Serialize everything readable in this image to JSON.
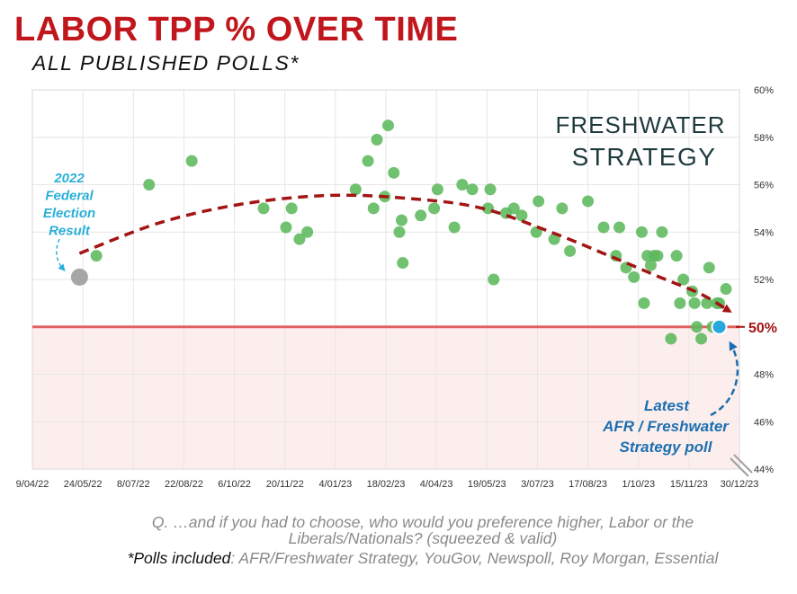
{
  "header": {
    "title": "LABOR TPP % OVER TIME",
    "subtitle": "ALL PUBLISHED POLLS*"
  },
  "brand": {
    "line1": "FRESHWATER",
    "line2": "STRATEGY",
    "color": "#1f3a3d"
  },
  "footer": {
    "question": "Q. …and if you had to choose, who would you preference higher, Labor or the Liberals/Nationals? (squeezed & valid)",
    "polls_lead": "*Polls included",
    "polls_list": ": AFR/Freshwater Strategy, YouGov, Newspoll, Roy Morgan, Essential"
  },
  "colors": {
    "title": "#c0161c",
    "points": "#5cb85c",
    "trend": "#a31515",
    "threshold": "#e06060",
    "below_threshold_fill": "#fdeeee",
    "election_point": "#a6a6a6",
    "latest_point": "#29a8e0",
    "annotation_election": "#2ab0d8",
    "annotation_latest": "#1b6fb0"
  },
  "chart_data": {
    "type": "scatter",
    "x_tick_labels": [
      "9/04/22",
      "24/05/22",
      "8/07/22",
      "22/08/22",
      "6/10/22",
      "20/11/22",
      "4/01/23",
      "18/02/23",
      "4/04/23",
      "19/05/23",
      "3/07/23",
      "17/08/23",
      "1/10/23",
      "15/11/23",
      "30/12/23"
    ],
    "y_tick_labels": [
      "44%",
      "46%",
      "48%",
      "50%",
      "52%",
      "54%",
      "56%",
      "58%",
      "60%"
    ],
    "ylim": [
      44,
      60
    ],
    "threshold": {
      "value": 50,
      "label": "50%"
    },
    "election": {
      "x": "2022-05-21",
      "y": 52.1,
      "label": "2022 Federal Election Result"
    },
    "latest": {
      "x": "2023-12-12",
      "y": 50.0,
      "label": "Latest AFR / Freshwater Strategy poll"
    },
    "polls": [
      {
        "x": "2022-06-05",
        "y": 53.0
      },
      {
        "x": "2022-07-22",
        "y": 56.0
      },
      {
        "x": "2022-08-29",
        "y": 57.0
      },
      {
        "x": "2022-11-01",
        "y": 55.0
      },
      {
        "x": "2022-11-21",
        "y": 54.2
      },
      {
        "x": "2022-11-26",
        "y": 55.0
      },
      {
        "x": "2022-12-03",
        "y": 53.7
      },
      {
        "x": "2022-12-10",
        "y": 54.0
      },
      {
        "x": "2023-01-22",
        "y": 55.8
      },
      {
        "x": "2023-02-02",
        "y": 57.0
      },
      {
        "x": "2023-02-07",
        "y": 55.0
      },
      {
        "x": "2023-02-10",
        "y": 57.9
      },
      {
        "x": "2023-02-17",
        "y": 55.5
      },
      {
        "x": "2023-02-20",
        "y": 58.5
      },
      {
        "x": "2023-02-25",
        "y": 56.5
      },
      {
        "x": "2023-03-02",
        "y": 54.0
      },
      {
        "x": "2023-03-04",
        "y": 54.5
      },
      {
        "x": "2023-03-05",
        "y": 52.7
      },
      {
        "x": "2023-03-21",
        "y": 54.7
      },
      {
        "x": "2023-04-02",
        "y": 55.0
      },
      {
        "x": "2023-04-05",
        "y": 55.8
      },
      {
        "x": "2023-04-20",
        "y": 54.2
      },
      {
        "x": "2023-04-27",
        "y": 56.0
      },
      {
        "x": "2023-05-06",
        "y": 55.8
      },
      {
        "x": "2023-05-20",
        "y": 55.0
      },
      {
        "x": "2023-05-22",
        "y": 55.8
      },
      {
        "x": "2023-05-25",
        "y": 52.0
      },
      {
        "x": "2023-06-05",
        "y": 54.8
      },
      {
        "x": "2023-06-12",
        "y": 55.0
      },
      {
        "x": "2023-06-19",
        "y": 54.7
      },
      {
        "x": "2023-07-02",
        "y": 54.0
      },
      {
        "x": "2023-07-04",
        "y": 55.3
      },
      {
        "x": "2023-07-18",
        "y": 53.7
      },
      {
        "x": "2023-07-25",
        "y": 55.0
      },
      {
        "x": "2023-08-01",
        "y": 53.2
      },
      {
        "x": "2023-08-17",
        "y": 55.3
      },
      {
        "x": "2023-08-31",
        "y": 54.2
      },
      {
        "x": "2023-09-11",
        "y": 53.0
      },
      {
        "x": "2023-09-14",
        "y": 54.2
      },
      {
        "x": "2023-09-20",
        "y": 52.5
      },
      {
        "x": "2023-09-27",
        "y": 52.1
      },
      {
        "x": "2023-10-04",
        "y": 54.0
      },
      {
        "x": "2023-10-06",
        "y": 51.0
      },
      {
        "x": "2023-10-09",
        "y": 53.0
      },
      {
        "x": "2023-10-12",
        "y": 52.6
      },
      {
        "x": "2023-10-15",
        "y": 53.0
      },
      {
        "x": "2023-10-18",
        "y": 53.0
      },
      {
        "x": "2023-10-22",
        "y": 54.0
      },
      {
        "x": "2023-10-30",
        "y": 49.5
      },
      {
        "x": "2023-11-04",
        "y": 53.0
      },
      {
        "x": "2023-11-07",
        "y": 51.0
      },
      {
        "x": "2023-11-10",
        "y": 52.0
      },
      {
        "x": "2023-11-18",
        "y": 51.5
      },
      {
        "x": "2023-11-20",
        "y": 51.0
      },
      {
        "x": "2023-11-22",
        "y": 50.0
      },
      {
        "x": "2023-11-26",
        "y": 49.5
      },
      {
        "x": "2023-12-01",
        "y": 51.0
      },
      {
        "x": "2023-12-03",
        "y": 52.5
      },
      {
        "x": "2023-12-06",
        "y": 50.0
      },
      {
        "x": "2023-12-10",
        "y": 51.0
      },
      {
        "x": "2023-12-12",
        "y": 51.0
      },
      {
        "x": "2023-12-18",
        "y": 51.6
      }
    ],
    "trend": [
      {
        "x": "2022-05-21",
        "y": 53.1
      },
      {
        "x": "2022-08-01",
        "y": 54.4
      },
      {
        "x": "2022-10-15",
        "y": 55.2
      },
      {
        "x": "2023-01-01",
        "y": 55.55
      },
      {
        "x": "2023-03-15",
        "y": 55.4
      },
      {
        "x": "2023-05-15",
        "y": 55.0
      },
      {
        "x": "2023-07-15",
        "y": 54.0
      },
      {
        "x": "2023-09-05",
        "y": 53.0
      },
      {
        "x": "2023-10-20",
        "y": 52.1
      },
      {
        "x": "2023-11-25",
        "y": 51.4
      },
      {
        "x": "2023-12-20",
        "y": 50.7
      }
    ]
  }
}
